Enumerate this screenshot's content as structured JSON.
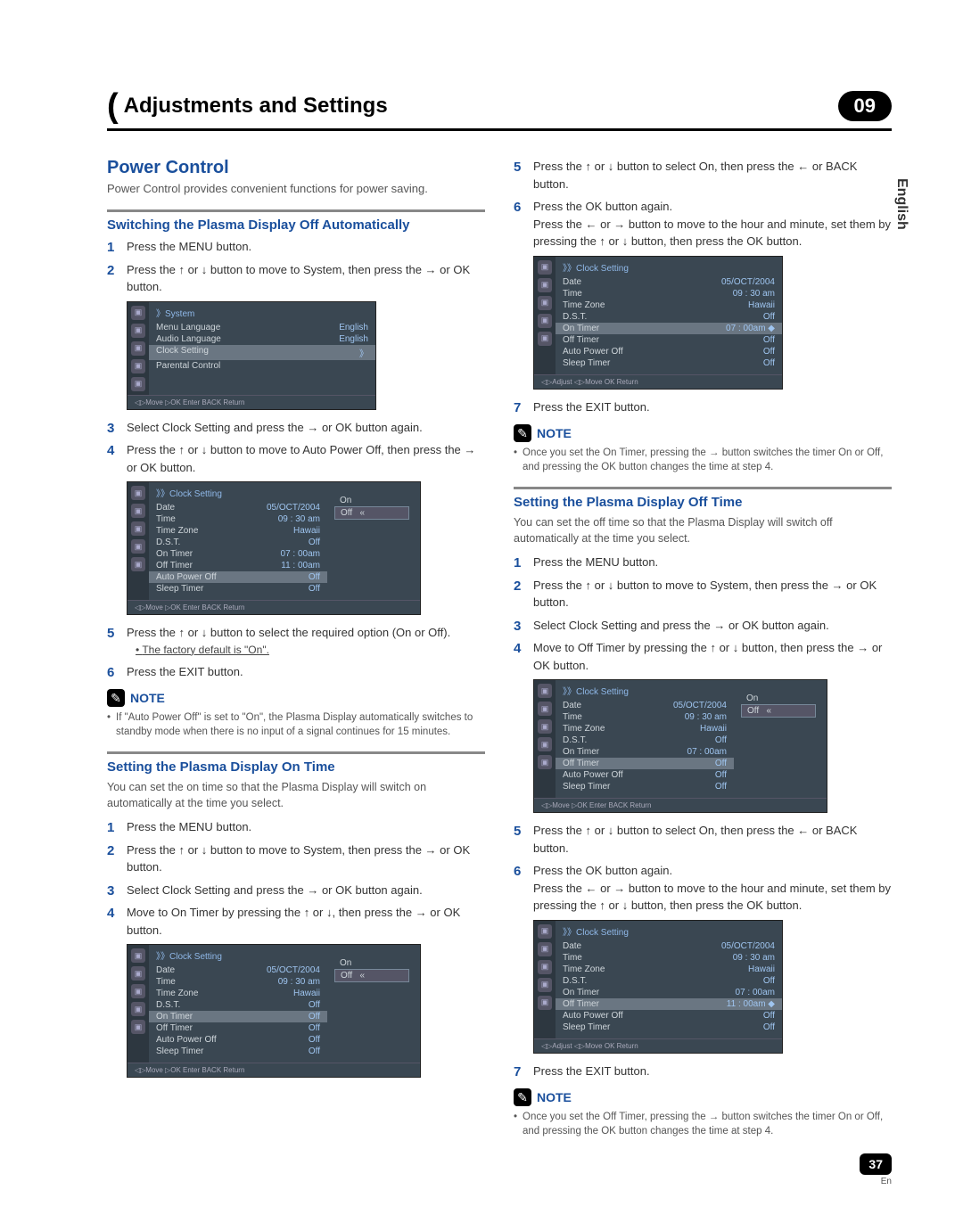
{
  "chapter": {
    "title": "Adjustments and Settings",
    "number": "09"
  },
  "langTab": "English",
  "pageFooter": {
    "num": "37",
    "lang": "En"
  },
  "noteLabel": "NOTE",
  "osdSystem": {
    "title": "》System",
    "rows": [
      {
        "label": "Menu Language",
        "value": "English"
      },
      {
        "label": "Audio Language",
        "value": "English"
      },
      {
        "label": "Clock Setting",
        "value": "》",
        "hl": true
      },
      {
        "label": "Parental Control",
        "value": ""
      }
    ],
    "footer": "◁▷Move   ▷OK Enter   BACK Return"
  },
  "osdClockBase": {
    "title": "》》Clock Setting",
    "footer_move": "◁▷Move   ▷OK Enter   BACK Return",
    "footer_adjust": "◁▷Adjust  ◁▷Move   OK Return"
  },
  "clockRows": {
    "date": "05/OCT/2004",
    "time": "09 : 30 am",
    "tz": "Hawaii",
    "dst": "Off"
  },
  "left": {
    "h2": "Power Control",
    "intro": "Power Control provides convenient functions for power saving.",
    "secA": {
      "h3": "Switching the Plasma Display Off Automatically",
      "steps": {
        "s1": "Press the MENU button.",
        "s2": "Press the ↑ or ↓ button to move to System, then press the → or OK button.",
        "s3": "Select Clock Setting and press the → or OK button again.",
        "s4": "Press the ↑ or ↓ button to move to Auto Power Off, then press the → or OK button.",
        "s5": "Press the ↑ or ↓ button to select the required option (On or Off).",
        "s5sub": "The factory default is \"On\".",
        "s6": "Press the EXIT button."
      },
      "note": "If \"Auto Power Off\" is set to \"On\", the Plasma Display automatically switches to standby mode when there is no input of a signal continues for 15 minutes."
    },
    "secB": {
      "h3": "Setting the Plasma Display On Time",
      "intro": "You can set the on time so that the Plasma Display will switch on automatically at the time you select.",
      "steps": {
        "s1": "Press the MENU button.",
        "s2": "Press the ↑ or ↓ button to move to System, then press the → or OK button.",
        "s3": "Select Clock Setting and press the → or OK button again.",
        "s4": "Move to On Timer by pressing the ↑ or ↓, then press the → or OK button."
      }
    }
  },
  "right": {
    "topSteps": {
      "s5": "Press the ↑ or ↓ button to select On, then press the ← or BACK button.",
      "s6": "Press the OK button again.",
      "s6b": "Press the ← or → button to move to the hour and minute, set them by pressing the ↑ or ↓ button, then press the OK button.",
      "s7": "Press the EXIT button."
    },
    "topNote": "Once you set the On Timer, pressing the → button switches the timer On or Off, and pressing the OK button changes the time at step 4.",
    "secC": {
      "h3": "Setting the Plasma Display Off Time",
      "intro": "You can set the off time so that the Plasma Display will switch off automatically at the time you select.",
      "steps": {
        "s1": "Press the MENU button.",
        "s2": "Press the ↑ or ↓ button to move to System, then press the → or OK button.",
        "s3": "Select Clock Setting and press the → or OK button again.",
        "s4": "Move to Off Timer by pressing the ↑ or ↓ button, then press the → or OK button.",
        "s5": "Press the ↑ or ↓ button to select On, then press the ← or BACK button.",
        "s6": "Press the OK button again.",
        "s6b": "Press the ← or → button to move to the hour and minute, set them by pressing the ↑ or ↓ button, then press the OK button.",
        "s7": "Press the EXIT button."
      },
      "note": "Once you set the Off Timer, pressing the → button switches the timer On or Off, and pressing the OK button changes the time at step 4."
    }
  },
  "osdA_rows": [
    {
      "label": "Date",
      "value": "05/OCT/2004"
    },
    {
      "label": "Time",
      "value": "09 : 30 am"
    },
    {
      "label": "Time Zone",
      "value": "Hawaii"
    },
    {
      "label": "D.S.T.",
      "value": "Off"
    },
    {
      "label": "On Timer",
      "value": "07 : 00am"
    },
    {
      "label": "Off Timer",
      "value": "11 : 00am"
    },
    {
      "label": "Auto Power Off",
      "value": "Off",
      "hl": true
    },
    {
      "label": "Sleep Timer",
      "value": "Off"
    }
  ],
  "osdB_rows": [
    {
      "label": "Date",
      "value": "05/OCT/2004"
    },
    {
      "label": "Time",
      "value": "09 : 30 am"
    },
    {
      "label": "Time Zone",
      "value": "Hawaii"
    },
    {
      "label": "D.S.T.",
      "value": "Off"
    },
    {
      "label": "On Timer",
      "value": "Off",
      "hl": true
    },
    {
      "label": "Off Timer",
      "value": "Off"
    },
    {
      "label": "Auto Power Off",
      "value": "Off"
    },
    {
      "label": "Sleep Timer",
      "value": "Off"
    }
  ],
  "osdC_rows": [
    {
      "label": "Date",
      "value": "05/OCT/2004"
    },
    {
      "label": "Time",
      "value": "09 : 30 am"
    },
    {
      "label": "Time Zone",
      "value": "Hawaii"
    },
    {
      "label": "D.S.T.",
      "value": "Off"
    },
    {
      "label": "On Timer",
      "value": "07 : 00am ◆",
      "hl": true
    },
    {
      "label": "Off Timer",
      "value": "Off"
    },
    {
      "label": "Auto Power Off",
      "value": "Off"
    },
    {
      "label": "Sleep Timer",
      "value": "Off"
    }
  ],
  "osdD_rows": [
    {
      "label": "Date",
      "value": "05/OCT/2004"
    },
    {
      "label": "Time",
      "value": "09 : 30 am"
    },
    {
      "label": "Time Zone",
      "value": "Hawaii"
    },
    {
      "label": "D.S.T.",
      "value": "Off"
    },
    {
      "label": "On Timer",
      "value": "07 : 00am"
    },
    {
      "label": "Off Timer",
      "value": "Off",
      "hl": true
    },
    {
      "label": "Auto Power Off",
      "value": "Off"
    },
    {
      "label": "Sleep Timer",
      "value": "Off"
    }
  ],
  "osdE_rows": [
    {
      "label": "Date",
      "value": "05/OCT/2004"
    },
    {
      "label": "Time",
      "value": "09 : 30 am"
    },
    {
      "label": "Time Zone",
      "value": "Hawaii"
    },
    {
      "label": "D.S.T.",
      "value": "Off"
    },
    {
      "label": "On Timer",
      "value": "07 : 00am"
    },
    {
      "label": "Off Timer",
      "value": "11 : 00am ◆",
      "hl": true
    },
    {
      "label": "Auto Power Off",
      "value": "Off"
    },
    {
      "label": "Sleep Timer",
      "value": "Off"
    }
  ],
  "sideOptions": {
    "on": "On",
    "off": "Off"
  }
}
